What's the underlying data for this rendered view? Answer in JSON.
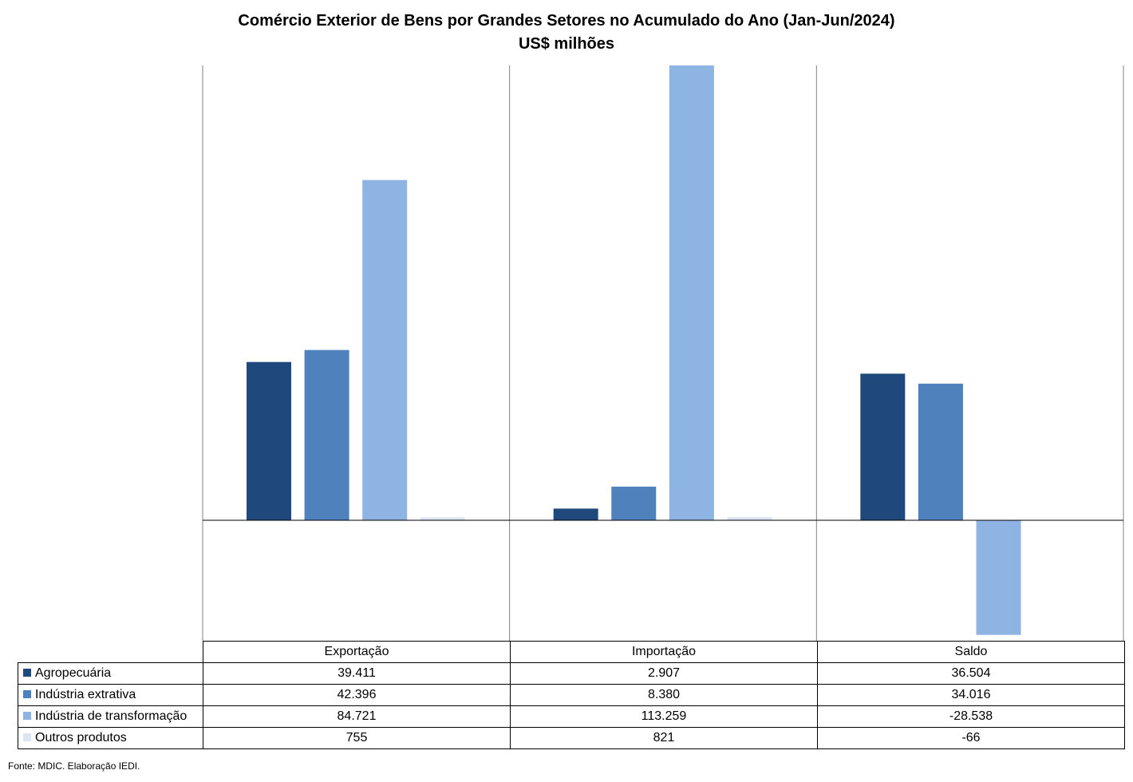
{
  "title": "Comércio Exterior de Bens por Grandes Setores no Acumulado do Ano (Jan-Jun/2024)",
  "subtitle": "US$ milhões",
  "source": "Fonte: MDIC. Elaboração IEDI.",
  "colors": {
    "Agropecuária": "#1f497d",
    "Indústria extrativa": "#4f81bd",
    "Indústria de transformação": "#8eb4e3",
    "Outros produtos": "#dce6f2"
  },
  "chart_data": {
    "type": "bar",
    "title": "Comércio Exterior de Bens por Grandes Setores no Acumulado do Ano (Jan-Jun/2024)",
    "subtitle": "US$ milhões",
    "categories": [
      "Exportação",
      "Importação",
      "Saldo"
    ],
    "series": [
      {
        "name": "Agropecuária",
        "values": [
          39411,
          2907,
          36504
        ],
        "labels": [
          "39.411",
          "2.907",
          "36.504"
        ]
      },
      {
        "name": "Indústria extrativa",
        "values": [
          42396,
          8380,
          34016
        ],
        "labels": [
          "42.396",
          "8.380",
          "34.016"
        ]
      },
      {
        "name": "Indústria de transformação",
        "values": [
          84721,
          113259,
          -28538
        ],
        "labels": [
          "84.721",
          "113.259",
          "-28.538"
        ]
      },
      {
        "name": "Outros produtos",
        "values": [
          755,
          821,
          -66
        ],
        "labels": [
          "755",
          "821",
          "-66"
        ]
      }
    ],
    "ylim": [
      -30000,
      113259
    ],
    "grid": false,
    "legend": "data table below chart"
  }
}
